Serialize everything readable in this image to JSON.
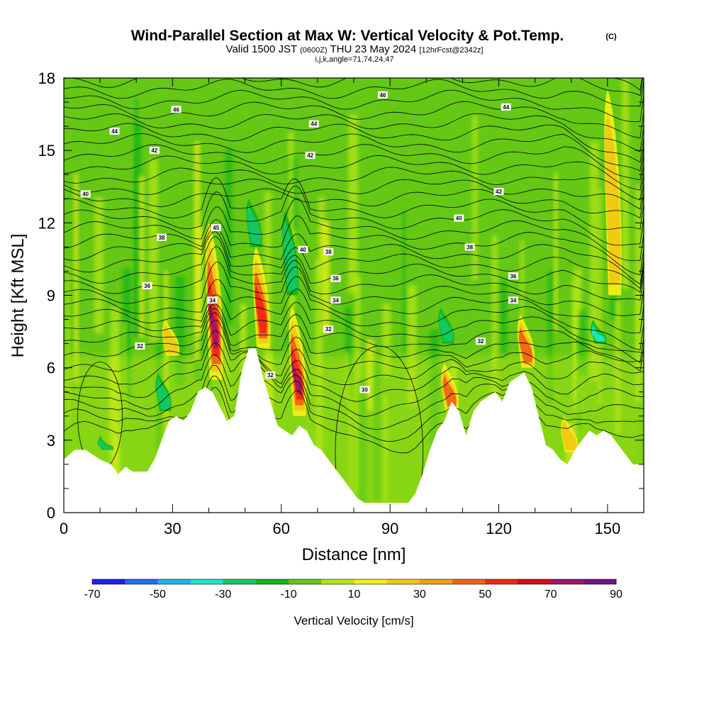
{
  "header": {
    "title": "Wind-Parallel Section at Max W: Vertical Velocity & Pot.Temp.",
    "copyright": "(C)",
    "valid_prefix": "Valid 1500 JST",
    "valid_utc": "(0600Z)",
    "valid_date": "THU 23 May 2024",
    "forecast": "[12hrFcst@2342z]",
    "indices": "i,j,k,angle=71,74,24,47"
  },
  "chart_data": {
    "type": "heatmap",
    "title": "Wind-Parallel Section at Max W: Vertical Velocity & Pot.Temp.",
    "xlabel": "Distance [nm]",
    "ylabel": "Height [Kft MSL]",
    "xlim": [
      0,
      160
    ],
    "ylim": [
      0,
      18
    ],
    "x_ticks": [
      "0",
      "30",
      "60",
      "90",
      "120",
      "150"
    ],
    "x_tick_values": [
      0,
      30,
      60,
      90,
      120,
      150
    ],
    "y_ticks": [
      "0",
      "3",
      "6",
      "9",
      "12",
      "15",
      "18"
    ],
    "y_tick_values": [
      0,
      3,
      6,
      9,
      12,
      15,
      18
    ],
    "colorbar": {
      "label": "Vertical Velocity [cm/s]",
      "tick_labels": [
        "-70",
        "-50",
        "-30",
        "-10",
        "10",
        "30",
        "50",
        "70",
        "90"
      ],
      "tick_values": [
        -70,
        -50,
        -30,
        -10,
        10,
        30,
        50,
        70,
        90
      ],
      "colors": [
        "#1e1ef0",
        "#1e6ef0",
        "#1eb4f0",
        "#1ee6c8",
        "#14c864",
        "#14b414",
        "#64c814",
        "#b4e614",
        "#f0f014",
        "#f0c814",
        "#f0a014",
        "#f06414",
        "#f02814",
        "#dc0a14",
        "#a0146e",
        "#6e148c"
      ]
    },
    "terrain_kft": {
      "x": [
        0,
        3,
        6,
        10,
        13,
        15,
        17,
        19,
        21,
        23,
        25,
        27,
        29,
        31,
        33,
        35,
        37,
        39,
        41,
        43,
        45,
        47,
        49,
        51,
        53,
        55,
        57,
        59,
        61,
        63,
        65,
        67,
        69,
        71,
        73,
        75,
        77,
        79,
        81,
        83,
        85,
        87,
        89,
        91,
        93,
        95,
        97,
        99,
        101,
        103,
        105,
        107,
        109,
        111,
        113,
        115,
        117,
        119,
        121,
        123,
        125,
        127,
        129,
        131,
        133,
        135,
        137,
        139,
        141,
        143,
        145,
        147,
        149,
        151,
        153,
        155,
        157,
        160
      ],
      "y": [
        2.2,
        2.6,
        2.6,
        2.2,
        2.0,
        1.6,
        1.9,
        1.7,
        1.7,
        1.7,
        2.2,
        3.0,
        3.8,
        4.0,
        3.8,
        4.2,
        5.0,
        5.2,
        5.0,
        4.4,
        3.8,
        4.0,
        5.8,
        6.8,
        6.8,
        5.6,
        4.6,
        3.6,
        3.4,
        3.2,
        3.6,
        3.4,
        2.8,
        2.6,
        2.2,
        1.8,
        1.4,
        1.0,
        0.6,
        0.4,
        0.4,
        0.4,
        0.4,
        0.4,
        0.4,
        0.4,
        0.8,
        1.6,
        2.6,
        3.4,
        3.8,
        4.6,
        4.2,
        3.2,
        4.2,
        4.6,
        4.8,
        5.0,
        4.6,
        5.4,
        5.6,
        5.8,
        5.2,
        4.0,
        2.8,
        2.6,
        2.2,
        2.0,
        2.6,
        3.0,
        3.4,
        3.2,
        3.4,
        3.2,
        2.8,
        2.4,
        2.0,
        2.0
      ]
    },
    "theta_contour_labels": [
      "46",
      "44",
      "42",
      "40",
      "38",
      "36",
      "34",
      "32",
      "30",
      "46",
      "44",
      "42",
      "40",
      "38",
      "36",
      "34",
      "32",
      "30"
    ],
    "contour_label_points": [
      {
        "text": "46",
        "x": 31,
        "y": 16.7
      },
      {
        "text": "44",
        "x": 14,
        "y": 15.8
      },
      {
        "text": "42",
        "x": 25,
        "y": 15.0
      },
      {
        "text": "40",
        "x": 6,
        "y": 13.2
      },
      {
        "text": "38",
        "x": 27,
        "y": 11.4
      },
      {
        "text": "36",
        "x": 23,
        "y": 9.4
      },
      {
        "text": "34",
        "x": 41,
        "y": 8.8
      },
      {
        "text": "32",
        "x": 21,
        "y": 6.9
      },
      {
        "text": "45",
        "x": 42,
        "y": 11.8
      },
      {
        "text": "46",
        "x": 88,
        "y": 17.3
      },
      {
        "text": "44",
        "x": 69,
        "y": 16.1
      },
      {
        "text": "42",
        "x": 68,
        "y": 14.8
      },
      {
        "text": "40",
        "x": 66,
        "y": 10.9
      },
      {
        "text": "38",
        "x": 73,
        "y": 10.8
      },
      {
        "text": "36",
        "x": 75,
        "y": 9.7
      },
      {
        "text": "34",
        "x": 75,
        "y": 8.8
      },
      {
        "text": "32",
        "x": 73,
        "y": 7.6
      },
      {
        "text": "32",
        "x": 57,
        "y": 5.7
      },
      {
        "text": "30",
        "x": 83,
        "y": 5.1
      },
      {
        "text": "44",
        "x": 122,
        "y": 16.8
      },
      {
        "text": "42",
        "x": 120,
        "y": 13.3
      },
      {
        "text": "40",
        "x": 109,
        "y": 12.2
      },
      {
        "text": "38",
        "x": 112,
        "y": 11.0
      },
      {
        "text": "36",
        "x": 124,
        "y": 9.8
      },
      {
        "text": "34",
        "x": 124,
        "y": 8.8
      },
      {
        "text": "32",
        "x": 115,
        "y": 7.1
      }
    ],
    "updraft_cores": [
      {
        "x": 42,
        "y_base": 5.5,
        "y_top": 12.0,
        "w": 70
      },
      {
        "x": 55,
        "y_base": 6.8,
        "y_top": 11.0,
        "w": 65
      },
      {
        "x": 65,
        "y_base": 4.0,
        "y_top": 8.5,
        "w": 85
      },
      {
        "x": 107,
        "y_base": 4.2,
        "y_top": 6.2,
        "w": 50
      },
      {
        "x": 128,
        "y_base": 6.0,
        "y_top": 8.2,
        "w": 40
      },
      {
        "x": 152,
        "y_base": 9.0,
        "y_top": 17.5,
        "w": 30
      },
      {
        "x": 30,
        "y_base": 6.5,
        "y_top": 8.0,
        "w": 25
      },
      {
        "x": 140,
        "y_base": 2.5,
        "y_top": 4.0,
        "w": 25
      }
    ],
    "downdraft_cores": [
      {
        "x": 28,
        "y_base": 4.2,
        "y_top": 5.8,
        "w": -30
      },
      {
        "x": 53,
        "y_base": 11.0,
        "y_top": 13.0,
        "w": -30
      },
      {
        "x": 63,
        "y_base": 9.0,
        "y_top": 12.5,
        "w": -30
      },
      {
        "x": 106,
        "y_base": 7.0,
        "y_top": 8.5,
        "w": -30
      },
      {
        "x": 148,
        "y_base": 7.0,
        "y_top": 8.0,
        "w": -35
      },
      {
        "x": 12,
        "y_base": 2.6,
        "y_top": 3.2,
        "w": -25
      }
    ]
  }
}
